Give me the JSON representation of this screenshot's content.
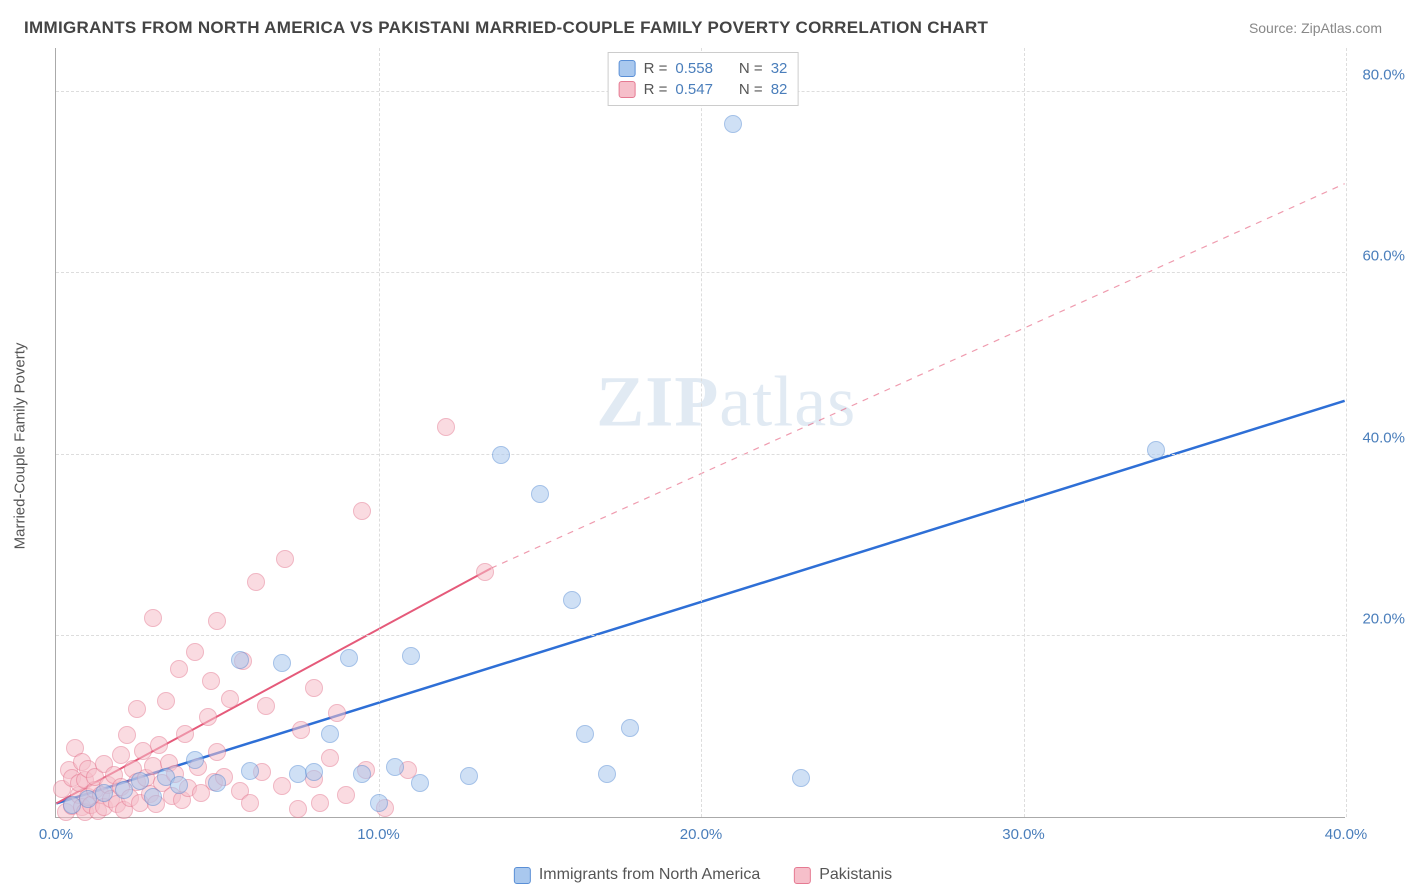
{
  "title": "IMMIGRANTS FROM NORTH AMERICA VS PAKISTANI MARRIED-COUPLE FAMILY POVERTY CORRELATION CHART",
  "source_label": "Source:",
  "source_name": "ZipAtlas.com",
  "ylabel": "Married-Couple Family Poverty",
  "chart": {
    "type": "scatter",
    "xlim": [
      0,
      40
    ],
    "ylim": [
      0,
      85
    ],
    "x_ticks": [
      0,
      10,
      20,
      30,
      40
    ],
    "x_tick_labels": [
      "0.0%",
      "10.0%",
      "20.0%",
      "30.0%",
      "40.0%"
    ],
    "y_ticks": [
      20,
      40,
      60,
      80
    ],
    "y_tick_labels": [
      "20.0%",
      "40.0%",
      "60.0%",
      "80.0%"
    ],
    "background_color": "#ffffff",
    "grid_color": "#dddddd",
    "grid_dash": true,
    "axis_color": "#aaaaaa",
    "tick_label_color": "#4a7ebb",
    "marker_opacity": 0.55,
    "marker_border_opacity": 0.9
  },
  "series": [
    {
      "name": "Immigrants from North America",
      "color_fill": "#a9c8ee",
      "color_border": "#5a8fd6",
      "marker_radius": 9,
      "R": "0.558",
      "N": "32",
      "trend": {
        "x1": 0,
        "y1": 1.5,
        "x2": 40,
        "y2": 46,
        "color": "#2e6fd6",
        "width": 2.5,
        "dash": false,
        "extrapolate_dash": false
      },
      "points": [
        [
          0.5,
          1.3
        ],
        [
          1.0,
          2.0
        ],
        [
          1.5,
          2.6
        ],
        [
          2.1,
          3.0
        ],
        [
          2.6,
          4.0
        ],
        [
          3.0,
          2.2
        ],
        [
          3.4,
          4.4
        ],
        [
          3.8,
          3.5
        ],
        [
          4.3,
          6.3
        ],
        [
          5.0,
          3.8
        ],
        [
          5.7,
          17.3
        ],
        [
          6.0,
          5.1
        ],
        [
          7.0,
          17.0
        ],
        [
          7.5,
          4.8
        ],
        [
          8.0,
          5.0
        ],
        [
          8.5,
          9.2
        ],
        [
          9.1,
          17.5
        ],
        [
          9.5,
          4.8
        ],
        [
          10.0,
          1.5
        ],
        [
          10.5,
          5.5
        ],
        [
          11.0,
          17.8
        ],
        [
          11.3,
          3.8
        ],
        [
          12.8,
          4.5
        ],
        [
          13.8,
          40.0
        ],
        [
          15.0,
          35.7
        ],
        [
          16.0,
          24.0
        ],
        [
          16.4,
          9.2
        ],
        [
          17.1,
          4.7
        ],
        [
          17.8,
          9.8
        ],
        [
          21.0,
          76.5
        ],
        [
          23.1,
          4.3
        ],
        [
          34.1,
          40.5
        ]
      ]
    },
    {
      "name": "Pakistanis",
      "color_fill": "#f6bfca",
      "color_border": "#e57a92",
      "marker_radius": 9,
      "R": "0.547",
      "N": "82",
      "trend": {
        "x1": 0,
        "y1": 1.5,
        "x2": 13.5,
        "y2": 27.5,
        "extrap_x2": 40,
        "extrap_y2": 70,
        "color": "#e55a7a",
        "width": 2,
        "dash": false,
        "extrapolate_dash": true
      },
      "points": [
        [
          0.2,
          3.1
        ],
        [
          0.3,
          0.5
        ],
        [
          0.4,
          5.2
        ],
        [
          0.5,
          1.2
        ],
        [
          0.5,
          4.3
        ],
        [
          0.6,
          7.6
        ],
        [
          0.7,
          2.4
        ],
        [
          0.7,
          3.8
        ],
        [
          0.8,
          1.1
        ],
        [
          0.8,
          6.1
        ],
        [
          0.9,
          0.6
        ],
        [
          0.9,
          4.1
        ],
        [
          1.0,
          2.2
        ],
        [
          1.0,
          5.3
        ],
        [
          1.1,
          1.3
        ],
        [
          1.2,
          3.0
        ],
        [
          1.2,
          4.4
        ],
        [
          1.3,
          0.7
        ],
        [
          1.4,
          2.4
        ],
        [
          1.5,
          5.9
        ],
        [
          1.5,
          1.1
        ],
        [
          1.6,
          3.5
        ],
        [
          1.7,
          2.0
        ],
        [
          1.8,
          4.6
        ],
        [
          1.9,
          1.4
        ],
        [
          2.0,
          6.8
        ],
        [
          2.0,
          3.3
        ],
        [
          2.1,
          0.8
        ],
        [
          2.2,
          9.0
        ],
        [
          2.3,
          2.1
        ],
        [
          2.4,
          5.3
        ],
        [
          2.5,
          11.9
        ],
        [
          2.5,
          3.9
        ],
        [
          2.6,
          1.6
        ],
        [
          2.7,
          7.3
        ],
        [
          2.8,
          4.3
        ],
        [
          2.9,
          2.5
        ],
        [
          3.0,
          22.0
        ],
        [
          3.0,
          5.6
        ],
        [
          3.1,
          1.4
        ],
        [
          3.2,
          8.0
        ],
        [
          3.3,
          3.7
        ],
        [
          3.4,
          12.8
        ],
        [
          3.5,
          6.0
        ],
        [
          3.6,
          2.3
        ],
        [
          3.7,
          4.7
        ],
        [
          3.8,
          16.3
        ],
        [
          3.9,
          1.9
        ],
        [
          4.0,
          9.2
        ],
        [
          4.1,
          3.2
        ],
        [
          4.3,
          18.2
        ],
        [
          4.4,
          5.5
        ],
        [
          4.5,
          2.7
        ],
        [
          4.7,
          11.0
        ],
        [
          4.8,
          15.0
        ],
        [
          4.9,
          3.9
        ],
        [
          5.0,
          7.2
        ],
        [
          5.0,
          21.6
        ],
        [
          5.2,
          4.4
        ],
        [
          5.4,
          13.0
        ],
        [
          5.7,
          2.9
        ],
        [
          5.8,
          17.2
        ],
        [
          6.0,
          1.6
        ],
        [
          6.2,
          25.9
        ],
        [
          6.4,
          5.0
        ],
        [
          6.5,
          12.3
        ],
        [
          7.0,
          3.4
        ],
        [
          7.1,
          28.5
        ],
        [
          7.5,
          0.9
        ],
        [
          7.6,
          9.6
        ],
        [
          8.0,
          4.2
        ],
        [
          8.0,
          14.2
        ],
        [
          8.2,
          1.5
        ],
        [
          8.5,
          6.5
        ],
        [
          8.7,
          11.5
        ],
        [
          9.0,
          2.4
        ],
        [
          9.5,
          33.8
        ],
        [
          9.6,
          5.2
        ],
        [
          10.2,
          1.0
        ],
        [
          10.9,
          5.2
        ],
        [
          12.1,
          43.0
        ],
        [
          13.3,
          27.0
        ]
      ]
    }
  ],
  "legend_top_labels": {
    "R": "R =",
    "N": "N ="
  },
  "watermark": {
    "zip": "ZIP",
    "atlas": "atlas",
    "color": "rgba(120,160,200,0.22)",
    "fontsize": 72
  }
}
